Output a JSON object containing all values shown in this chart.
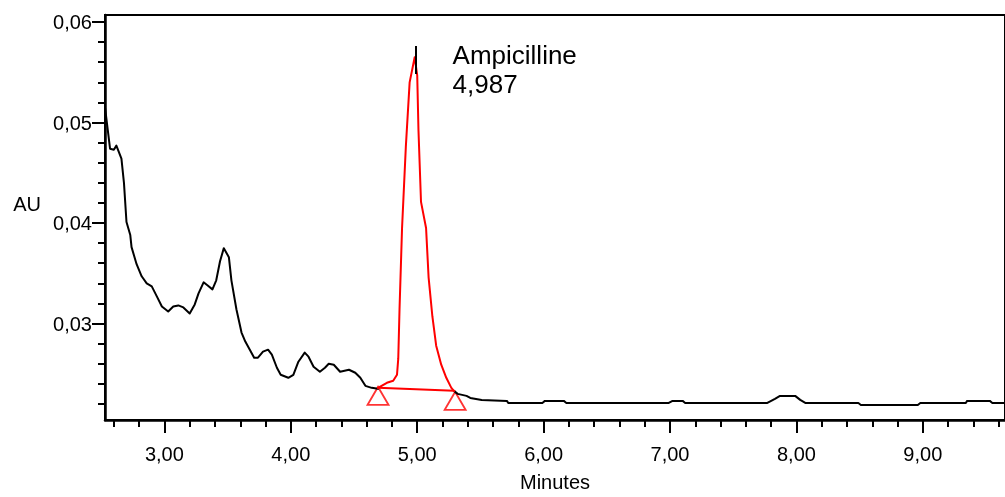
{
  "chart_data": {
    "type": "line",
    "xlabel": "Minutes",
    "ylabel": "AU",
    "annotations": [
      {
        "text": "Ampicilline\n4,987",
        "x": 4.987,
        "y": 0.0565
      }
    ],
    "xlim": [
      2.53,
      9.65
    ],
    "ylim": [
      0.0204,
      0.0607
    ],
    "xticks": [
      {
        "value": 2.6,
        "label": null
      },
      {
        "value": 2.8,
        "label": null
      },
      {
        "value": 3,
        "label": "3,00"
      },
      {
        "value": 3.2,
        "label": null
      },
      {
        "value": 3.4,
        "label": null
      },
      {
        "value": 3.6,
        "label": null
      },
      {
        "value": 3.8,
        "label": null
      },
      {
        "value": 4,
        "label": "4,00"
      },
      {
        "value": 4.2,
        "label": null
      },
      {
        "value": 4.4,
        "label": null
      },
      {
        "value": 4.6,
        "label": null
      },
      {
        "value": 4.8,
        "label": null
      },
      {
        "value": 5,
        "label": "5,00"
      },
      {
        "value": 5.2,
        "label": null
      },
      {
        "value": 5.4,
        "label": null
      },
      {
        "value": 5.6,
        "label": null
      },
      {
        "value": 5.8,
        "label": null
      },
      {
        "value": 6,
        "label": "6,00"
      },
      {
        "value": 6.2,
        "label": null
      },
      {
        "value": 6.4,
        "label": null
      },
      {
        "value": 6.6,
        "label": null
      },
      {
        "value": 6.8,
        "label": null
      },
      {
        "value": 7,
        "label": "7,00"
      },
      {
        "value": 7.2,
        "label": null
      },
      {
        "value": 7.4,
        "label": null
      },
      {
        "value": 7.6,
        "label": null
      },
      {
        "value": 7.8,
        "label": null
      },
      {
        "value": 8,
        "label": "8,00"
      },
      {
        "value": 8.2,
        "label": null
      },
      {
        "value": 8.4,
        "label": null
      },
      {
        "value": 8.6,
        "label": null
      },
      {
        "value": 8.8,
        "label": null
      },
      {
        "value": 9,
        "label": "9,00"
      },
      {
        "value": 9.2,
        "label": null
      },
      {
        "value": 9.4,
        "label": null
      },
      {
        "value": 9.6,
        "label": null
      }
    ],
    "yticks": [
      {
        "value": 0.022,
        "label": null
      },
      {
        "value": 0.024,
        "label": null
      },
      {
        "value": 0.026,
        "label": null
      },
      {
        "value": 0.028,
        "label": null
      },
      {
        "value": 0.03,
        "label": "0,03"
      },
      {
        "value": 0.032,
        "label": null
      },
      {
        "value": 0.034,
        "label": null
      },
      {
        "value": 0.036,
        "label": null
      },
      {
        "value": 0.038,
        "label": null
      },
      {
        "value": 0.04,
        "label": "0,04"
      },
      {
        "value": 0.042,
        "label": null
      },
      {
        "value": 0.044,
        "label": null
      },
      {
        "value": 0.046,
        "label": null
      },
      {
        "value": 0.048,
        "label": null
      },
      {
        "value": 0.05,
        "label": "0,05"
      },
      {
        "value": 0.052,
        "label": null
      },
      {
        "value": 0.054,
        "label": null
      },
      {
        "value": 0.056,
        "label": null
      },
      {
        "value": 0.058,
        "label": null
      },
      {
        "value": 0.06,
        "label": "0,06"
      }
    ],
    "series": [
      {
        "color": "#000000",
        "x": [
          2.53,
          2.57,
          2.6,
          2.62,
          2.66,
          2.68,
          2.7,
          2.73,
          2.74,
          2.78,
          2.82,
          2.86,
          2.9,
          2.94,
          2.98,
          3.03,
          3.07,
          3.11,
          3.15,
          3.2,
          3.24,
          3.27,
          3.31,
          3.34,
          3.38,
          3.41,
          3.44,
          3.47,
          3.51,
          3.53,
          3.57,
          3.61,
          3.64,
          3.68,
          3.71,
          3.74,
          3.78,
          3.82,
          3.85,
          3.89,
          3.92,
          3.98,
          4.02,
          4.06,
          4.11,
          4.14,
          4.18,
          4.23,
          4.27,
          4.3,
          4.34,
          4.39,
          4.46,
          4.51,
          4.55,
          4.59,
          4.64,
          4.69,
          4.99,
          5.29,
          5.32,
          5.39,
          5.42,
          5.51,
          5.71,
          5.72,
          5.99,
          6.01,
          6.16,
          6.18,
          6.99,
          7.02,
          7.1,
          7.12,
          7.77,
          7.83,
          7.87,
          7.99,
          8.03,
          8.07,
          8.49,
          8.51,
          8.96,
          8.98,
          9.34,
          9.35,
          9.53,
          9.55,
          9.65
        ],
        "values": [
          0.0515,
          0.0474,
          0.0473,
          0.0477,
          0.0464,
          0.044,
          0.0401,
          0.0388,
          0.0376,
          0.0359,
          0.0347,
          0.034,
          0.0337,
          0.0327,
          0.0317,
          0.0312,
          0.0317,
          0.0318,
          0.0316,
          0.031,
          0.0319,
          0.033,
          0.0341,
          0.0338,
          0.0334,
          0.0343,
          0.0362,
          0.0375,
          0.0366,
          0.0343,
          0.0314,
          0.0291,
          0.0282,
          0.0273,
          0.0266,
          0.0266,
          0.0272,
          0.0274,
          0.0269,
          0.0256,
          0.0249,
          0.0246,
          0.0249,
          0.0262,
          0.0271,
          0.0267,
          0.0257,
          0.0252,
          0.0256,
          0.026,
          0.0259,
          0.0252,
          0.0254,
          0.0251,
          0.0246,
          0.0238,
          0.0236,
          0.0235,
          null,
          0.0233,
          0.023,
          0.0228,
          0.0226,
          0.0224,
          0.0223,
          0.0221,
          0.0221,
          0.0223,
          0.0223,
          0.0221,
          0.0221,
          0.0223,
          0.0223,
          0.0221,
          0.0221,
          0.0225,
          0.0228,
          0.0228,
          0.0224,
          0.0221,
          0.0221,
          0.0219,
          0.0219,
          0.0221,
          0.0221,
          0.0223,
          0.0223,
          0.0221,
          0.0221
        ]
      },
      {
        "color": "#ff0000",
        "x": [
          4.69,
          4.76,
          4.81,
          4.84,
          4.85,
          4.86,
          4.88,
          4.91,
          4.94,
          4.98,
          5.0,
          5.01,
          5.03,
          5.07,
          5.09,
          5.12,
          5.15,
          5.19,
          5.23,
          5.27,
          5.29
        ],
        "values": [
          0.0236,
          0.0241,
          0.0243,
          0.0249,
          0.0265,
          0.0314,
          0.0395,
          0.0476,
          0.054,
          0.0565,
          0.0547,
          0.0492,
          0.0421,
          0.0395,
          0.0346,
          0.0307,
          0.0278,
          0.0259,
          0.0246,
          0.0236,
          0.0233
        ]
      },
      {
        "color": "#ff0000",
        "x": [
          4.69,
          5.29
        ],
        "values": [
          0.0236,
          0.0233
        ]
      },
      {
        "type": "scatter",
        "marker": "triangle",
        "color": "#ff0000",
        "x": [
          4.69,
          5.3
        ],
        "values": [
          0.0228,
          0.0223
        ]
      }
    ]
  }
}
